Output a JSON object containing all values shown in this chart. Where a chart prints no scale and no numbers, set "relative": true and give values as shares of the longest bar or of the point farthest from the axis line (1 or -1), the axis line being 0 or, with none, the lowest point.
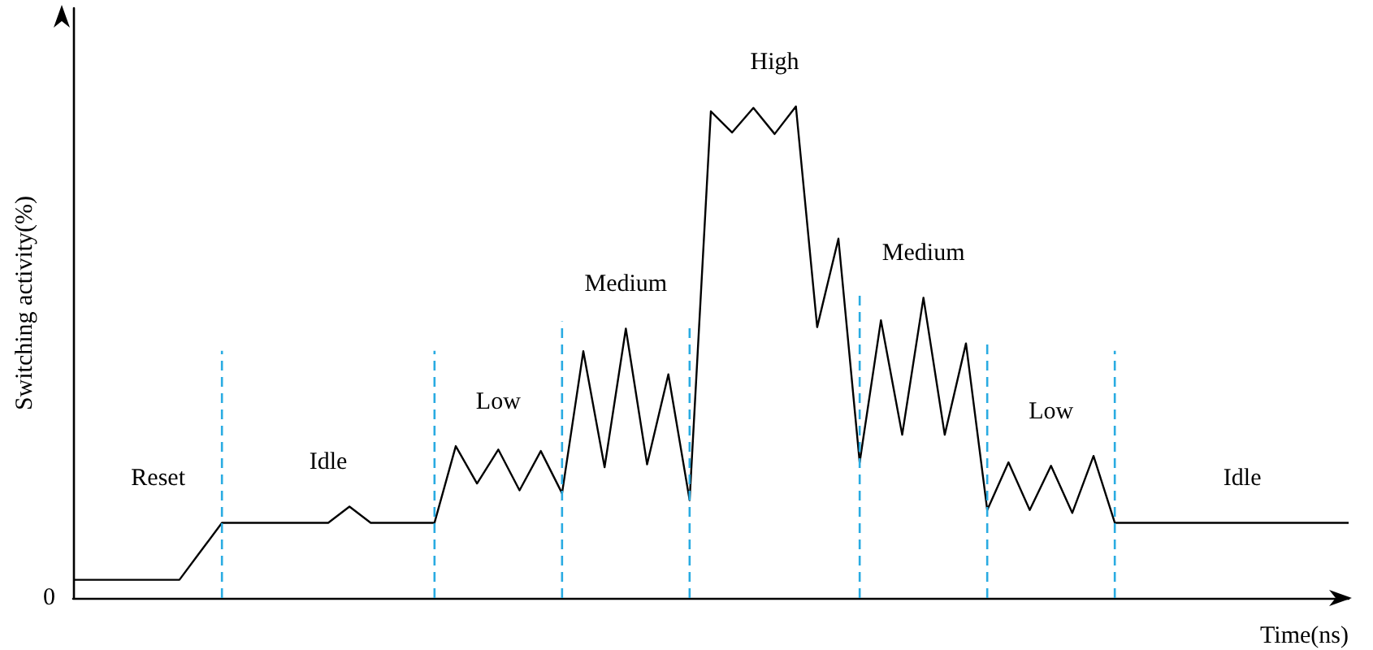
{
  "chart_data": {
    "type": "line",
    "relative": true,
    "xlabel": "Time(ns)",
    "ylabel": "Switching activity(%)",
    "tick_labels": false,
    "marker": "none",
    "line_style": "solid",
    "categories": [
      null,
      null,
      null,
      null,
      null,
      null,
      null,
      null,
      null,
      null,
      null,
      null,
      null,
      null,
      null,
      null,
      null,
      null,
      null,
      null,
      null,
      null,
      null,
      null,
      null,
      null,
      null,
      null,
      null,
      null,
      null,
      null,
      null,
      null,
      null,
      null,
      null,
      null,
      null,
      null,
      null,
      null,
      null,
      null,
      null,
      null,
      null,
      null,
      null,
      null,
      null,
      null,
      null,
      null,
      null,
      null,
      null,
      null,
      null,
      null,
      null
    ],
    "series": [
      {
        "color": "#000000",
        "values": [
          0.037,
          0.037,
          0.037,
          0.037,
          0.037,
          0.037,
          0.095,
          0.153,
          0.153,
          0.153,
          0.153,
          0.153,
          0.153,
          0.186,
          0.153,
          0.153,
          0.153,
          0.153,
          0.309,
          0.233,
          0.302,
          0.219,
          0.299,
          0.213,
          0.502,
          0.266,
          0.548,
          0.272,
          0.455,
          0.199,
          0.99,
          0.947,
          0.997,
          0.944,
          1,
          0.551,
          0.731,
          0.276,
          0.565,
          0.332,
          0.611,
          0.332,
          0.518,
          0.179,
          0.276,
          0.179,
          0.269,
          0.173,
          0.289,
          0.153,
          0.153,
          0.153,
          0.153,
          0.153,
          0.153,
          0.153,
          0.153,
          0.153,
          0.153,
          0.153,
          0.153
        ]
      }
    ],
    "annotations": [
      "0",
      "Reset",
      "Idle",
      "Low",
      "Medium",
      "High",
      "Medium",
      "Low",
      "Idle"
    ]
  }
}
